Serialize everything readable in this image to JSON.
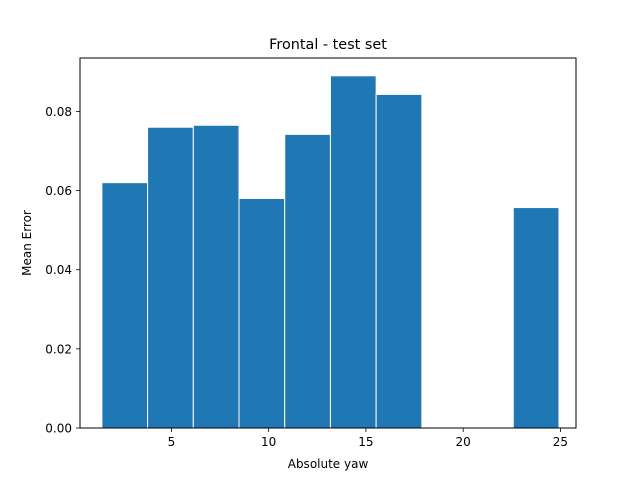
{
  "chart_data": {
    "type": "bar",
    "title": "Frontal - test set",
    "xlabel": "Absolute yaw",
    "ylabel": "Mean Error",
    "xlim": [
      0.3,
      25.8
    ],
    "ylim": [
      0.0,
      0.0935
    ],
    "xticks": [
      5,
      10,
      15,
      20,
      25
    ],
    "xtick_labels": [
      "5",
      "10",
      "15",
      "20",
      "25"
    ],
    "yticks": [
      0.0,
      0.02,
      0.04,
      0.06,
      0.08
    ],
    "ytick_labels": [
      "0.00",
      "0.02",
      "0.04",
      "0.06",
      "0.08"
    ],
    "bar_width": 2.35,
    "bars": [
      {
        "x": 2.6,
        "value": 0.062
      },
      {
        "x": 4.95,
        "value": 0.076
      },
      {
        "x": 7.3,
        "value": 0.0765
      },
      {
        "x": 9.65,
        "value": 0.058
      },
      {
        "x": 12.0,
        "value": 0.0742
      },
      {
        "x": 14.35,
        "value": 0.089
      },
      {
        "x": 16.7,
        "value": 0.0843
      },
      {
        "x": 23.75,
        "value": 0.0557
      }
    ],
    "grid": false,
    "colors": {
      "bar": "#1f77b4",
      "edge": "#ffffff"
    }
  }
}
